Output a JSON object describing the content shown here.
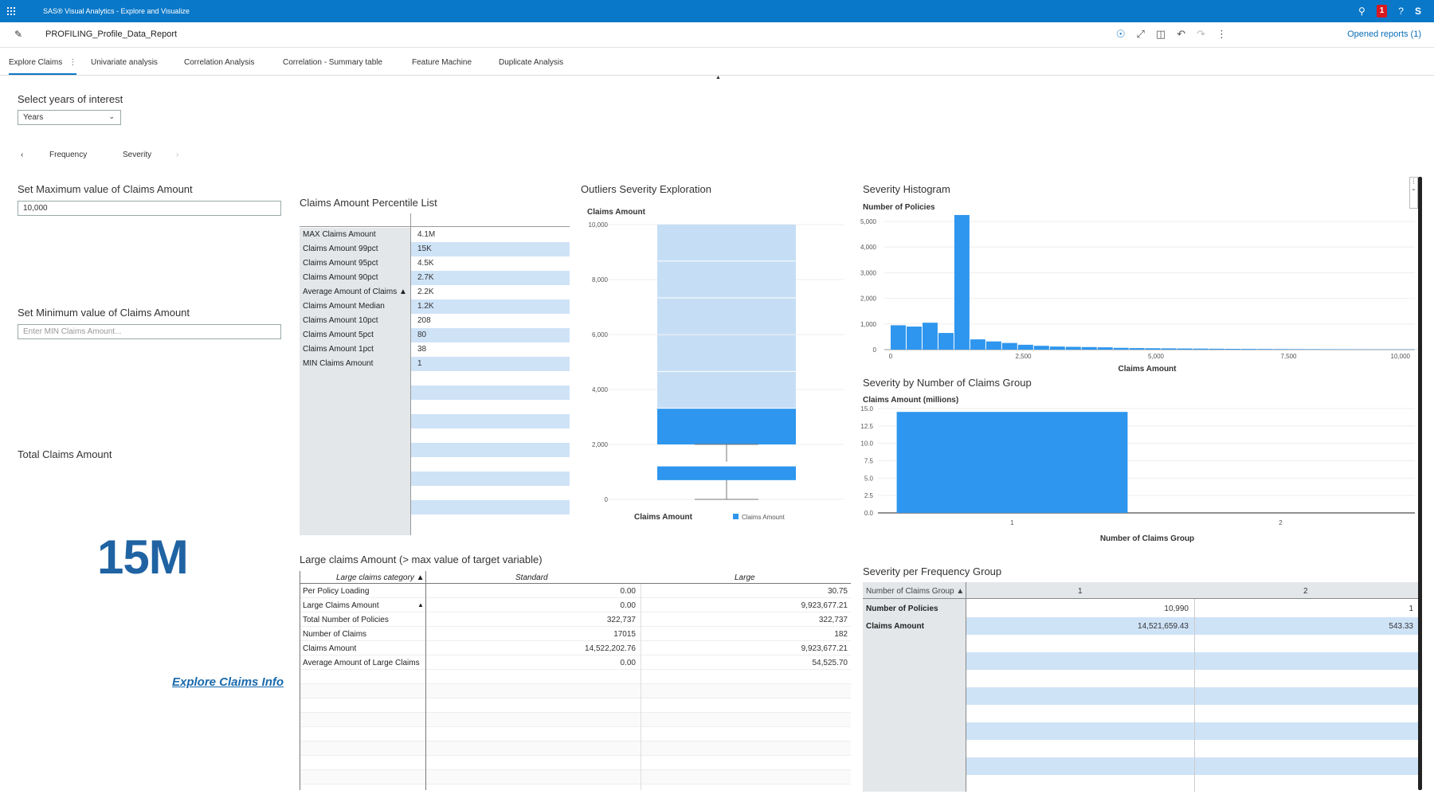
{
  "app": {
    "title": "SAS® Visual Analytics - Explore and Visualize",
    "alerts_count": "1",
    "user_initials": "S"
  },
  "report": {
    "title": "PROFILING_Profile_Data_Report",
    "opened_reports": "Opened reports (1)"
  },
  "tabs": [
    {
      "label": "Explore Claims"
    },
    {
      "label": "Univariate analysis"
    },
    {
      "label": "Correlation Analysis"
    },
    {
      "label": "Correlation - Summary table"
    },
    {
      "label": "Feature Machine"
    },
    {
      "label": "Duplicate Analysis"
    }
  ],
  "filters": {
    "years_label": "Select years of interest",
    "years_value": "Years",
    "nav_prev": "‹",
    "nav_items": [
      "Frequency",
      "Severity"
    ],
    "nav_next": "›",
    "max_label": "Set Maximum value of Claims Amount",
    "max_value": "10,000",
    "min_label": "Set Minimum value of Claims Amount",
    "min_placeholder": "Enter MIN Claims Amount..."
  },
  "kpi": {
    "label": "Total Claims Amount",
    "value": "15M"
  },
  "link": {
    "label": "Explore Claims Info"
  },
  "percentile_list": {
    "title": "Claims Amount Percentile List",
    "rows": [
      {
        "label": "MAX Claims Amount",
        "value": "4.1M"
      },
      {
        "label": "Claims Amount 99pct",
        "value": "15K"
      },
      {
        "label": "Claims Amount 95pct",
        "value": "4.5K"
      },
      {
        "label": "Claims Amount 90pct",
        "value": "2.7K"
      },
      {
        "label": "Average Amount of Claims ▲",
        "value": "2.2K"
      },
      {
        "label": "Claims Amount Median",
        "value": "1.2K"
      },
      {
        "label": "Claims Amount 10pct",
        "value": "208"
      },
      {
        "label": "Claims Amount 5pct",
        "value": "80"
      },
      {
        "label": "Claims Amount 1pct",
        "value": "38"
      },
      {
        "label": "MIN Claims Amount",
        "value": "1"
      }
    ]
  },
  "boxplot": {
    "title": "Outliers Severity Exploration",
    "ylabel": "Claims Amount",
    "xlabel": "Claims Amount",
    "legend": "Claims Amount",
    "ticks": [
      "10,000",
      "8,000",
      "6,000",
      "4,000",
      "2,000",
      "0"
    ],
    "colors": {
      "light": "#c6def5",
      "dark": "#2e96ee",
      "whisker": "#777777"
    }
  },
  "histogram": {
    "title": "Severity Histogram",
    "ylabel": "Number of Policies",
    "xlabel": "Claims Amount",
    "yticks": [
      "5,000",
      "4,000",
      "3,000",
      "2,000",
      "1,000",
      "0"
    ],
    "xticks": [
      "0",
      "2,500",
      "5,000",
      "7,500",
      "10,000"
    ],
    "color": "#2e96ee"
  },
  "group_chart": {
    "title": "Severity by Number of Claims Group",
    "ylabel": "Claims Amount (millions)",
    "xlabel": "Number of Claims Group",
    "yticks": [
      "15.0",
      "12.5",
      "10.0",
      "7.5",
      "5.0",
      "2.5",
      "0.0"
    ],
    "xticks": [
      "1",
      "2"
    ],
    "color": "#2e96ee"
  },
  "chart_data": [
    {
      "type": "box",
      "title": "Outliers Severity Exploration",
      "ylabel": "Claims Amount",
      "ylim": [
        0,
        10000
      ],
      "min": 0,
      "q1": 700,
      "median": 1200,
      "q3": 2000,
      "upper_band": 3300,
      "max": 10000
    },
    {
      "type": "bar",
      "title": "Severity Histogram",
      "xlabel": "Claims Amount",
      "ylabel": "Number of Policies",
      "ylim": [
        0,
        5000
      ],
      "xlim": [
        0,
        10000
      ],
      "bin_width": 300,
      "values": [
        950,
        900,
        1050,
        650,
        5250,
        400,
        320,
        260,
        190,
        150,
        120,
        110,
        100,
        90,
        70,
        60,
        55,
        50,
        45,
        40,
        35,
        30,
        28,
        25,
        22,
        20,
        18,
        16,
        14,
        12,
        10,
        9,
        8,
        7
      ]
    },
    {
      "type": "bar",
      "title": "Severity by Number of Claims Group",
      "xlabel": "Number of Claims Group",
      "ylabel": "Claims Amount (millions)",
      "categories": [
        "1",
        "2"
      ],
      "values": [
        14.52,
        0.0005
      ],
      "ylim": [
        0,
        15
      ]
    }
  ],
  "large_claims": {
    "title": "Large claims Amount (> max value of target variable)",
    "header": {
      "category": "Large claims category ▲",
      "standard": "Standard",
      "large": "Large"
    },
    "rows": [
      {
        "label": "Per Policy Loading",
        "standard": "0.00",
        "large": "30.75"
      },
      {
        "label": "Large Claims Amount",
        "standard": "0.00",
        "large": "9,923,677.21"
      },
      {
        "label": "Total Number of Policies",
        "standard": "322,737",
        "large": "322,737"
      },
      {
        "label": "Number of Claims",
        "standard": "17015",
        "large": "182"
      },
      {
        "label": "Claims Amount",
        "standard": "14,522,202.76",
        "large": "9,923,677.21"
      },
      {
        "label": "Average Amount of Large Claims",
        "standard": "0.00",
        "large": "54,525.70"
      }
    ]
  },
  "freq_table": {
    "title": "Severity per Frequency Group",
    "header": {
      "group": "Number of Claims Group ▲",
      "c1": "1",
      "c2": "2"
    },
    "rows": [
      {
        "label": "Number of Policies",
        "c1": "10,990",
        "c2": "1"
      },
      {
        "label": "Claims Amount",
        "c1": "14,521,659.43",
        "c2": "543.33"
      }
    ]
  }
}
